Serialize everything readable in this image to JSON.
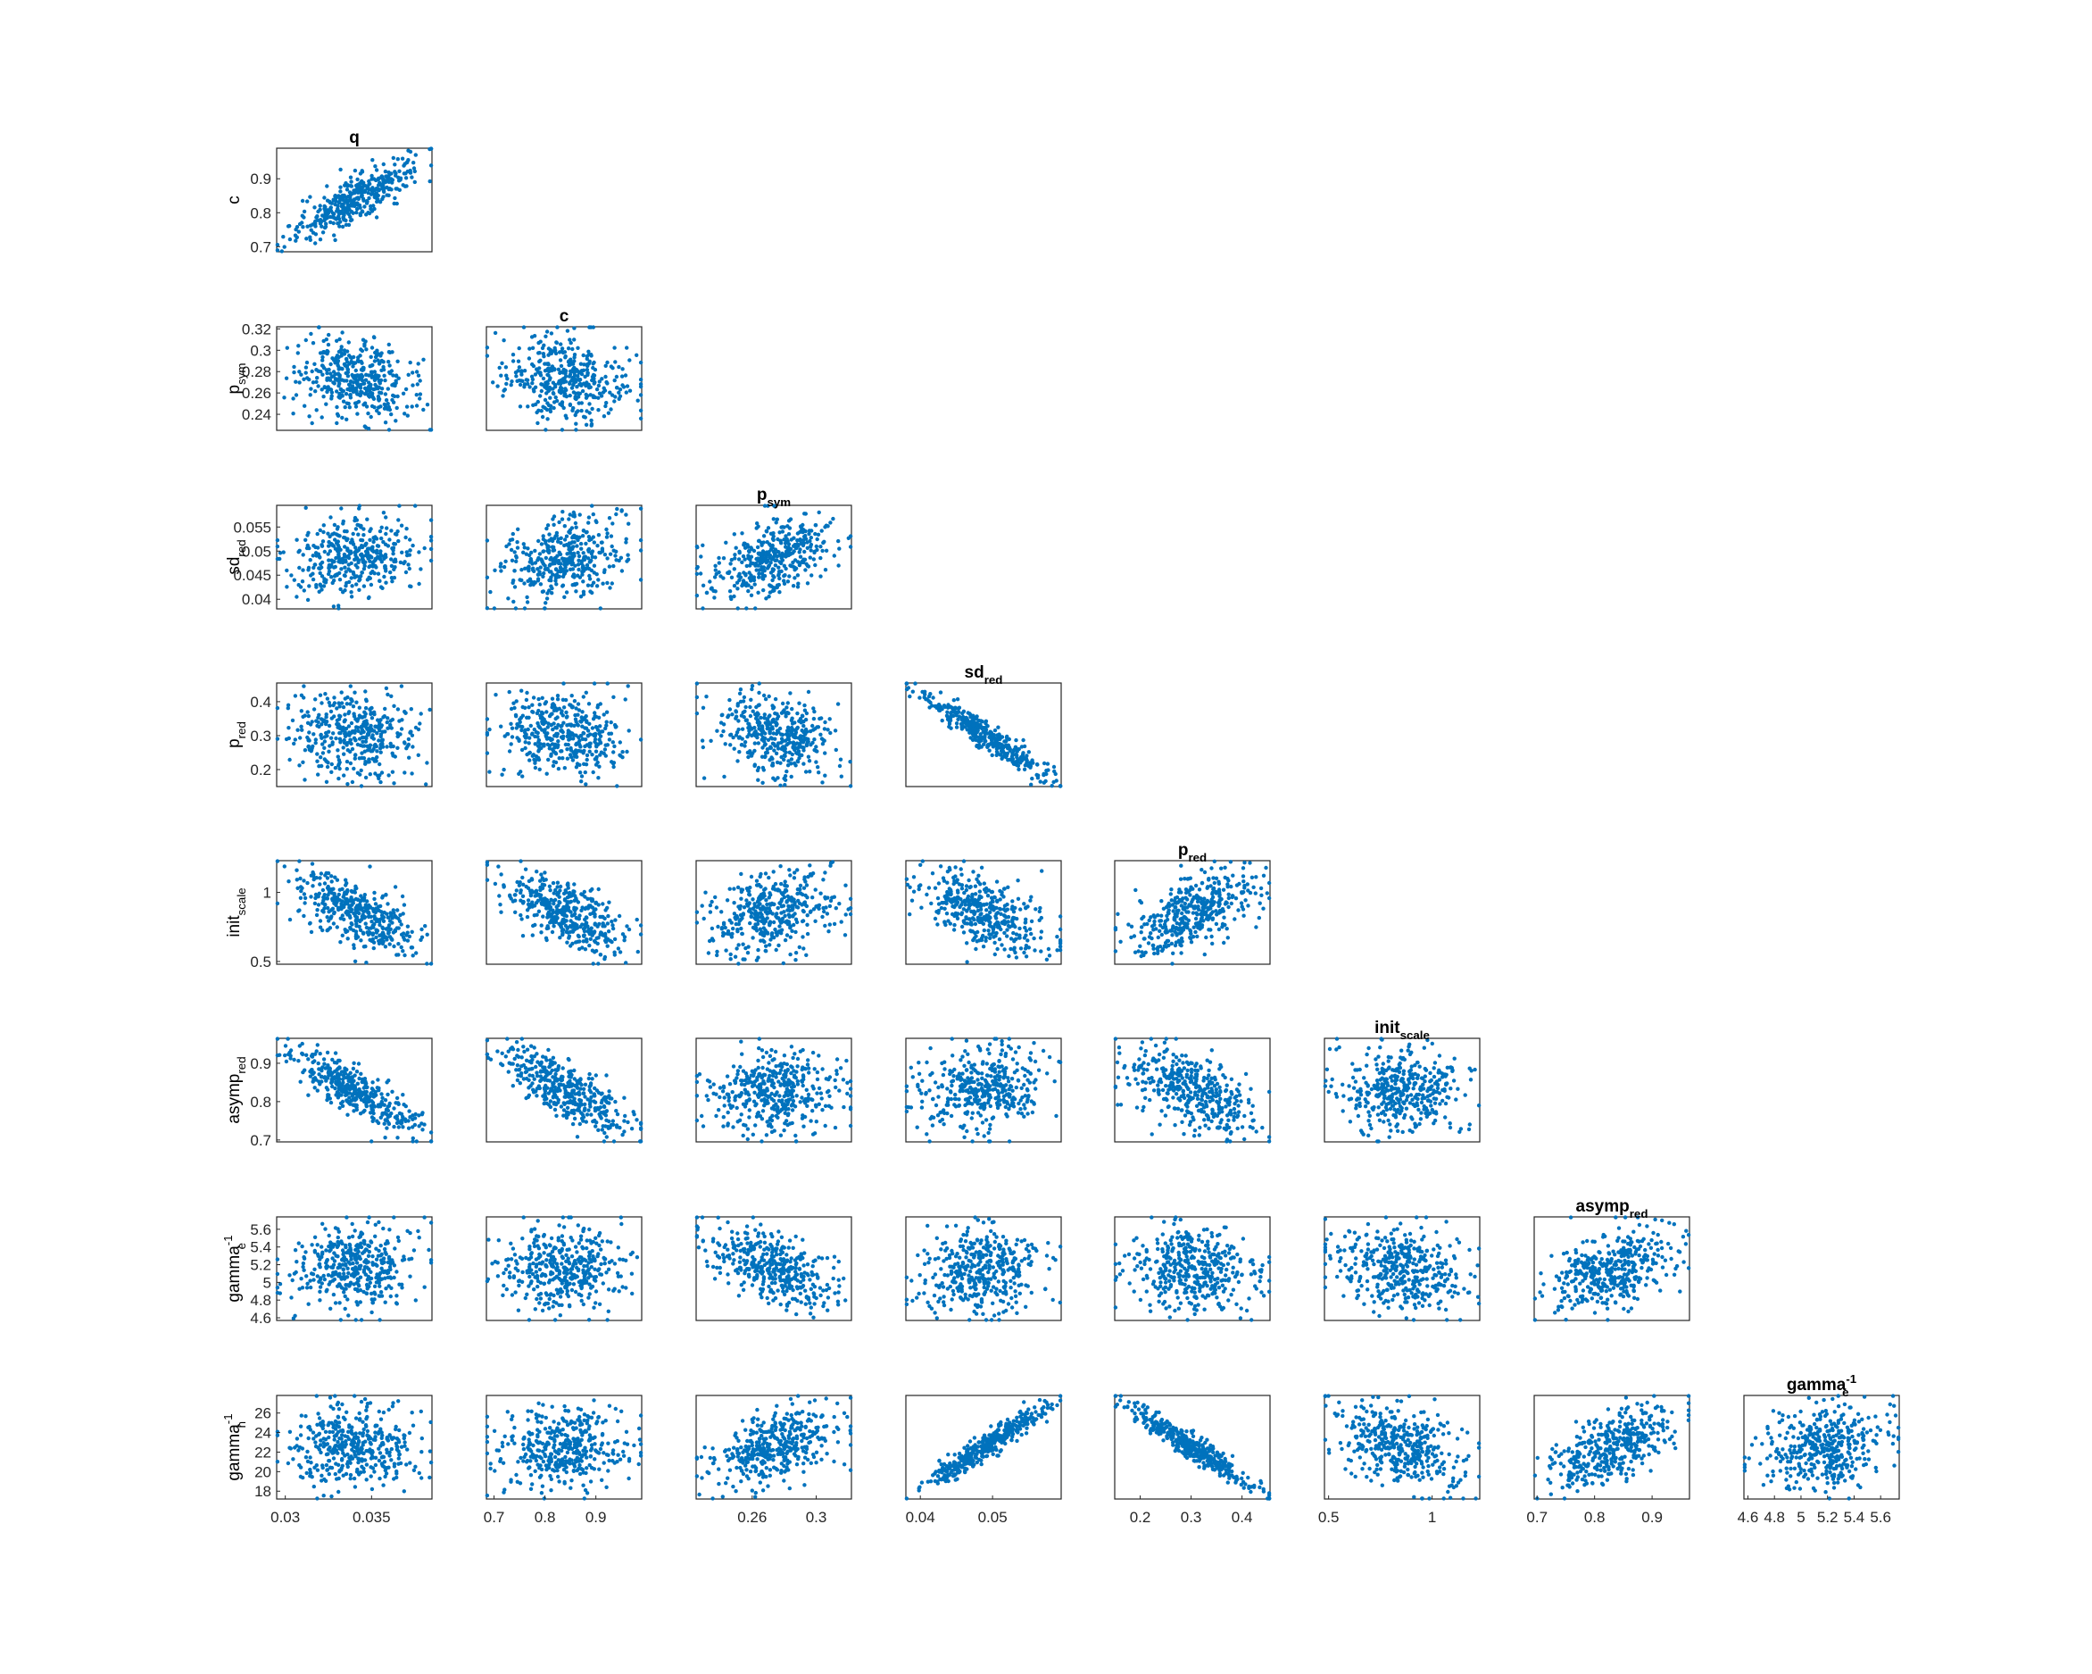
{
  "chart_data": {
    "type": "scatter",
    "layout": "lower-triangular scatter matrix",
    "marker_color": "#0072BD",
    "variables": [
      {
        "key": "q",
        "base": "q",
        "sub": "",
        "sup": "",
        "range": [
          0.0295,
          0.0385
        ],
        "ticks": [
          0.03,
          0.035
        ]
      },
      {
        "key": "c",
        "base": "c",
        "sub": "",
        "sup": "",
        "range": [
          0.685,
          0.99
        ],
        "ticks": [
          0.7,
          0.8,
          0.9
        ]
      },
      {
        "key": "p_sym",
        "base": "p",
        "sub": "sym",
        "sup": "",
        "range": [
          0.225,
          0.322
        ],
        "ticks": [
          0.24,
          0.26,
          0.28,
          0.3,
          0.32
        ]
      },
      {
        "key": "sd_red",
        "base": "sd",
        "sub": "red",
        "sup": "",
        "range": [
          0.038,
          0.0595
        ],
        "ticks": [
          0.04,
          0.045,
          0.05,
          0.055
        ]
      },
      {
        "key": "p_red",
        "base": "p",
        "sub": "red",
        "sup": "",
        "range": [
          0.15,
          0.455
        ],
        "ticks": [
          0.2,
          0.3,
          0.4
        ]
      },
      {
        "key": "init_scale",
        "base": "init",
        "sub": "scale",
        "sup": "",
        "range": [
          0.48,
          1.23
        ],
        "ticks": [
          0.5,
          1
        ]
      },
      {
        "key": "asymp_red",
        "base": "asymp",
        "sub": "red",
        "sup": "",
        "range": [
          0.695,
          0.965
        ],
        "ticks": [
          0.7,
          0.8,
          0.9
        ]
      },
      {
        "key": "gamma_e_inv",
        "base": "gamma",
        "sub": "e",
        "sup": "-1",
        "range": [
          4.57,
          5.74
        ],
        "ticks": [
          4.6,
          4.8,
          5,
          5.2,
          5.4,
          5.6
        ]
      },
      {
        "key": "gamma_h_inv",
        "base": "gamma",
        "sub": "h",
        "sup": "-1",
        "range": [
          17.2,
          27.8
        ],
        "ticks": [
          18,
          20,
          22,
          24,
          26
        ]
      }
    ],
    "x_tick_labels": {
      "q": [
        "0.03",
        "0.035"
      ],
      "c": [
        "0.7",
        "0.8",
        "0.9"
      ],
      "p_sym": [
        "0.26",
        "0.3"
      ],
      "sd_red": [
        "0.04",
        "0.05"
      ],
      "p_red": [
        "0.2",
        "0.3",
        "0.4"
      ],
      "init_scale": [
        "0.5",
        "1"
      ],
      "asymp_red": [
        "0.7",
        "0.8",
        "0.9"
      ],
      "gamma_e_inv": [
        "4.6",
        "4.8",
        "5",
        "5.2",
        "5.4",
        "5.6"
      ]
    },
    "x_tick_values": {
      "q": [
        0.03,
        0.035
      ],
      "c": [
        0.7,
        0.8,
        0.9
      ],
      "p_sym": [
        0.26,
        0.3
      ],
      "sd_red": [
        0.04,
        0.05
      ],
      "p_red": [
        0.2,
        0.3,
        0.4
      ],
      "init_scale": [
        0.5,
        1
      ],
      "asymp_red": [
        0.7,
        0.8,
        0.9
      ],
      "gamma_e_inv": [
        4.6,
        4.8,
        5,
        5.2,
        5.4,
        5.6
      ]
    },
    "y_tick_labels": {
      "c": [
        "0.7",
        "0.8",
        "0.9"
      ],
      "p_sym": [
        "0.24",
        "0.26",
        "0.28",
        "0.3",
        "0.32"
      ],
      "sd_red": [
        "0.04",
        "0.045",
        "0.05",
        "0.055"
      ],
      "p_red": [
        "0.2",
        "0.3",
        "0.4"
      ],
      "init_scale": [
        "0.5",
        "1"
      ],
      "asymp_red": [
        "0.7",
        "0.8",
        "0.9"
      ],
      "gamma_e_inv": [
        "4.6",
        "4.8",
        "5",
        "5.2",
        "5.4",
        "5.6"
      ],
      "gamma_h_inv": [
        "18",
        "20",
        "22",
        "24",
        "26"
      ]
    },
    "correlations": [
      {
        "row": "c",
        "col": "q",
        "r": 0.85
      },
      {
        "row": "p_sym",
        "col": "q",
        "r": -0.3
      },
      {
        "row": "p_sym",
        "col": "c",
        "r": -0.2
      },
      {
        "row": "sd_red",
        "col": "q",
        "r": 0.15
      },
      {
        "row": "sd_red",
        "col": "c",
        "r": 0.3
      },
      {
        "row": "sd_red",
        "col": "p_sym",
        "r": 0.45
      },
      {
        "row": "p_red",
        "col": "q",
        "r": -0.1
      },
      {
        "row": "p_red",
        "col": "c",
        "r": -0.1
      },
      {
        "row": "p_red",
        "col": "p_sym",
        "r": -0.3
      },
      {
        "row": "p_red",
        "col": "sd_red",
        "r": -0.95
      },
      {
        "row": "init_scale",
        "col": "q",
        "r": -0.7
      },
      {
        "row": "init_scale",
        "col": "c",
        "r": -0.65
      },
      {
        "row": "init_scale",
        "col": "p_sym",
        "r": 0.35
      },
      {
        "row": "init_scale",
        "col": "sd_red",
        "r": -0.55
      },
      {
        "row": "init_scale",
        "col": "p_red",
        "r": 0.55
      },
      {
        "row": "asymp_red",
        "col": "q",
        "r": -0.85
      },
      {
        "row": "asymp_red",
        "col": "c",
        "r": -0.75
      },
      {
        "row": "asymp_red",
        "col": "p_sym",
        "r": 0.0
      },
      {
        "row": "asymp_red",
        "col": "sd_red",
        "r": 0.2
      },
      {
        "row": "asymp_red",
        "col": "p_red",
        "r": -0.5
      },
      {
        "row": "asymp_red",
        "col": "init_scale",
        "r": 0.0
      },
      {
        "row": "gamma_e_inv",
        "col": "q",
        "r": 0.1
      },
      {
        "row": "gamma_e_inv",
        "col": "c",
        "r": 0.0
      },
      {
        "row": "gamma_e_inv",
        "col": "p_sym",
        "r": -0.55
      },
      {
        "row": "gamma_e_inv",
        "col": "sd_red",
        "r": 0.1
      },
      {
        "row": "gamma_e_inv",
        "col": "p_red",
        "r": -0.1
      },
      {
        "row": "gamma_e_inv",
        "col": "init_scale",
        "r": -0.2
      },
      {
        "row": "gamma_e_inv",
        "col": "asymp_red",
        "r": 0.4
      },
      {
        "row": "gamma_h_inv",
        "col": "q",
        "r": 0.0
      },
      {
        "row": "gamma_h_inv",
        "col": "c",
        "r": 0.1
      },
      {
        "row": "gamma_h_inv",
        "col": "p_sym",
        "r": 0.5
      },
      {
        "row": "gamma_h_inv",
        "col": "sd_red",
        "r": 0.95
      },
      {
        "row": "gamma_h_inv",
        "col": "p_red",
        "r": -0.95
      },
      {
        "row": "gamma_h_inv",
        "col": "init_scale",
        "r": -0.4
      },
      {
        "row": "gamma_h_inv",
        "col": "asymp_red",
        "r": 0.6
      },
      {
        "row": "gamma_h_inv",
        "col": "gamma_e_inv",
        "r": 0.2
      }
    ],
    "points_per_panel": 400,
    "legend": "none",
    "grid": false
  }
}
